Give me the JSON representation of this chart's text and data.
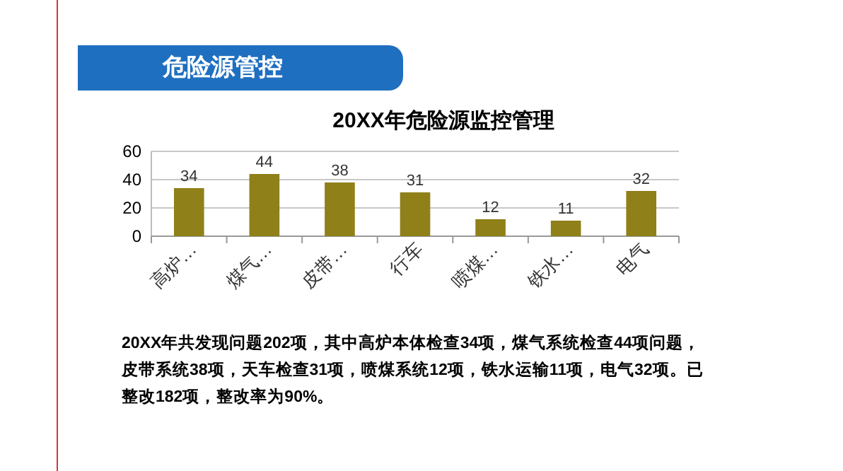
{
  "chart_data": {
    "type": "bar",
    "title": "20XX年危险源监控管理",
    "categories": [
      "高炉…",
      "煤气…",
      "皮带…",
      "行车",
      "喷煤…",
      "铁水…",
      "电气"
    ],
    "series": [
      {
        "color": "#8f8019",
        "values": [
          34,
          44,
          38,
          31,
          12,
          11,
          32
        ]
      }
    ],
    "ylim": [
      0,
      60
    ],
    "yticks": [
      0,
      20,
      40,
      60
    ],
    "grid": "y",
    "data_labels": true,
    "annotations": [
      "危险源管控",
      "20XX年共发现问题202项，其中高炉本体检查34项，煤气系统检查44项问题，皮带系统38项，天车检查31项，喷煤系统12项，铁水运输11项，电气32项。已整改182项，整改率为90%。"
    ]
  }
}
